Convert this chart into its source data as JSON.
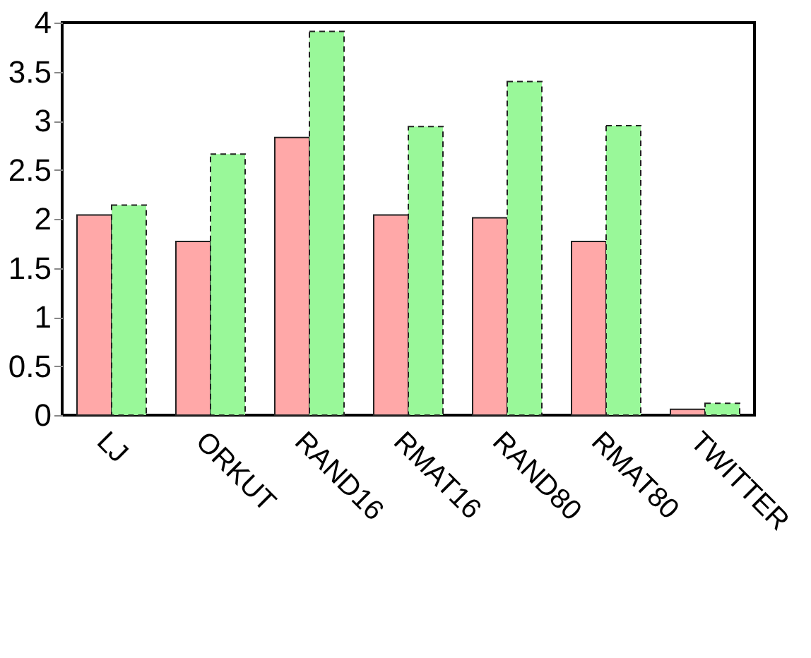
{
  "chart_data": {
    "type": "bar",
    "categories": [
      "LJ",
      "ORKUT",
      "RAND16",
      "RMAT16",
      "RAND80",
      "RMAT80",
      "TWITTER"
    ],
    "series": [
      {
        "color": "#ffa8a8",
        "line_style": "solid",
        "values": [
          2.04,
          1.77,
          2.83,
          2.04,
          2.01,
          1.77,
          0.06
        ]
      },
      {
        "color": "#99f899",
        "line_style": "dashed",
        "values": [
          2.14,
          2.66,
          3.91,
          2.94,
          3.4,
          2.95,
          0.12
        ]
      }
    ],
    "ylim": [
      0,
      4
    ],
    "yticks": [
      0,
      0.5,
      1,
      1.5,
      2,
      2.5,
      3,
      3.5,
      4
    ],
    "grid": false,
    "legend": false
  }
}
